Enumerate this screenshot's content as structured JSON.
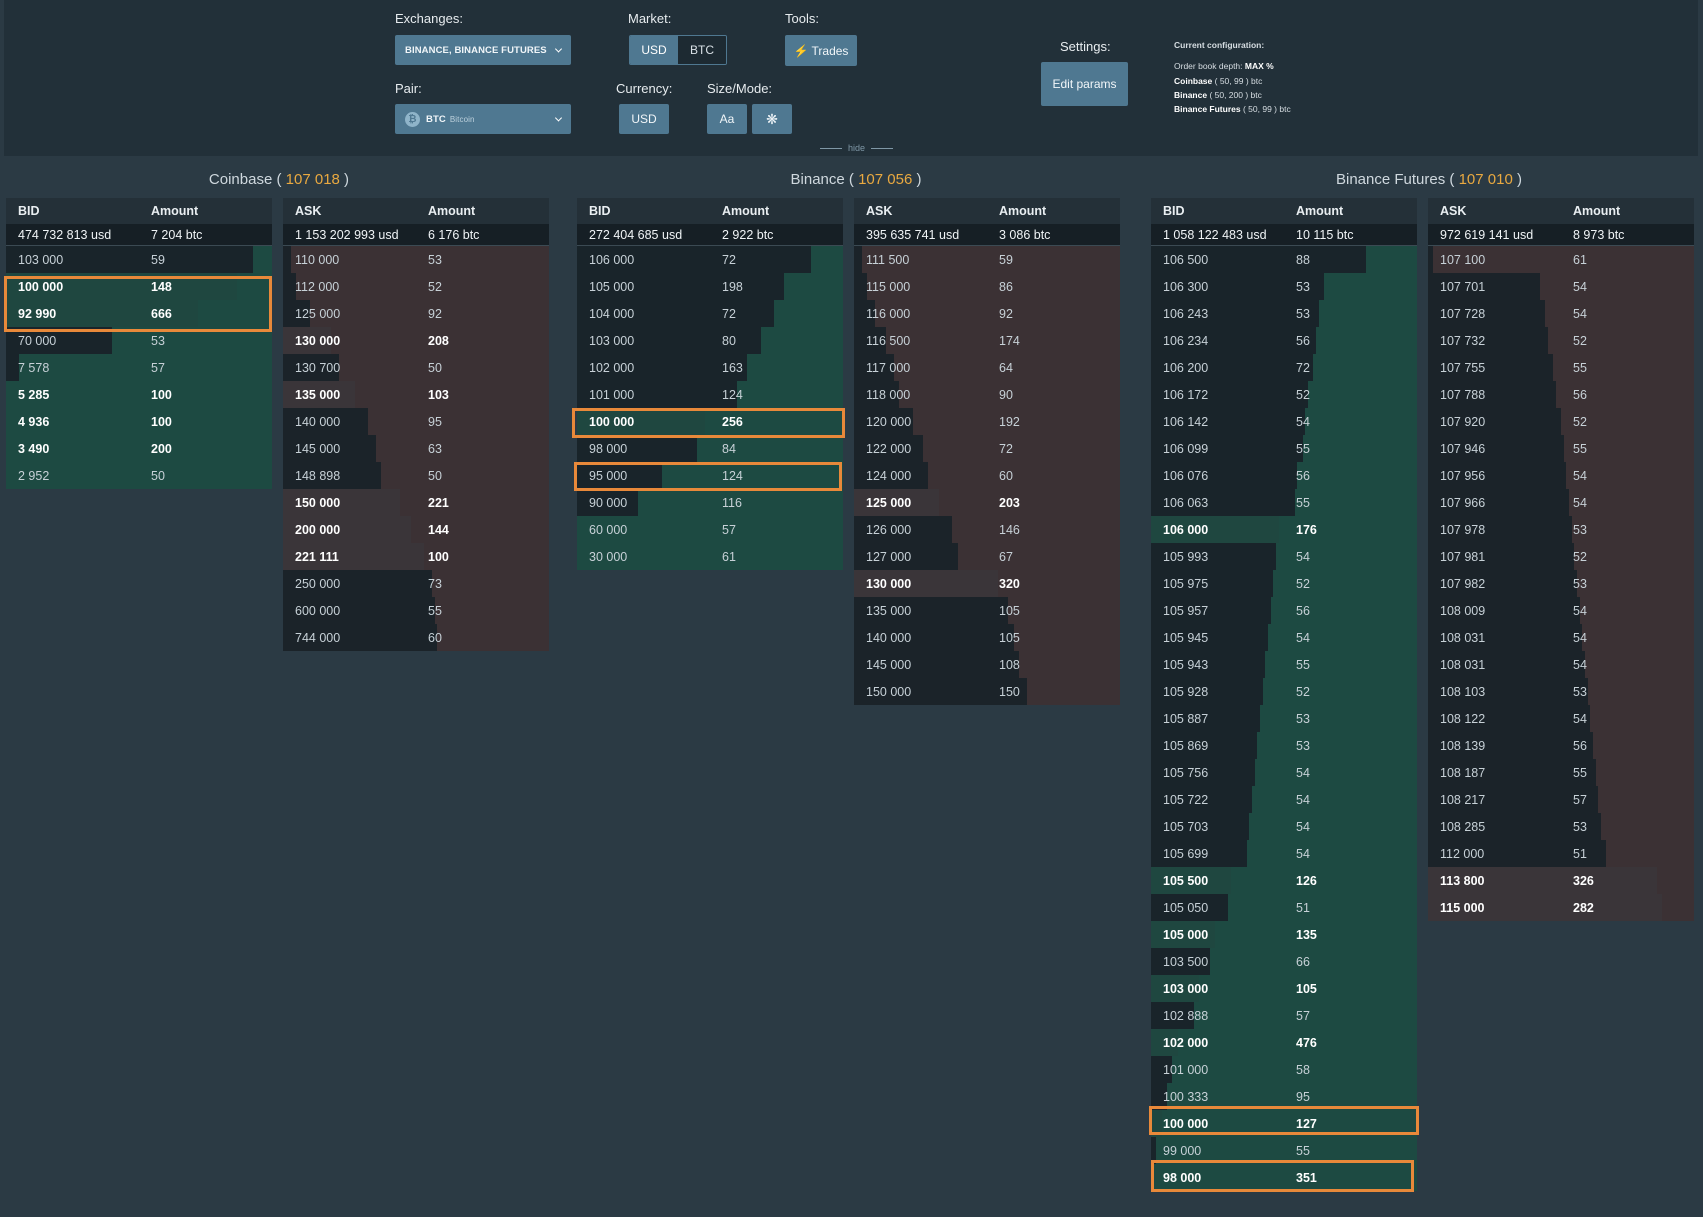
{
  "controls": {
    "exchanges_label": "Exchanges:",
    "exchanges_value": "BINANCE, BINANCE FUTURES",
    "market_label": "Market:",
    "market_options": [
      "USD",
      "BTC"
    ],
    "tools_label": "Tools:",
    "trades_button": "Trades",
    "pair_label": "Pair:",
    "pair_value": "BTC",
    "pair_sub": "Bitcoin",
    "currency_label": "Currency:",
    "currency_value": "USD",
    "sizemode_label": "Size/Mode:",
    "size_button": "Aa",
    "mode_button": "❋",
    "settings_label": "Settings:",
    "edit_params_button": "Edit params",
    "hide_label": "hide"
  },
  "config": {
    "title": "Current configuration:",
    "depth_prefix": "Order book depth:",
    "depth_value": "MAX %",
    "lines": [
      {
        "name": "Coinbase",
        "rest": " ( 50, 99 ) btc"
      },
      {
        "name": "Binance",
        "rest": " ( 50, 200 ) btc"
      },
      {
        "name": "Binance Futures",
        "rest": " ( 50, 99 ) btc"
      }
    ]
  },
  "exchanges": [
    {
      "name": "Coinbase",
      "price": "107 018",
      "bid": {
        "headers": [
          "BID",
          "Amount"
        ],
        "total": [
          "474 732 813 usd",
          "7 204 btc"
        ],
        "rows": [
          {
            "price": "103 000",
            "amount": "59",
            "depth": 0.07
          },
          {
            "price": "100 000",
            "amount": "148",
            "depth": 0.13,
            "big": true
          },
          {
            "price": "92 990",
            "amount": "666",
            "depth": 0.28,
            "big": true
          },
          {
            "price": "70 000",
            "amount": "53",
            "depth": 0.6
          },
          {
            "price": "7 578",
            "amount": "57",
            "depth": 0.95
          },
          {
            "price": "5 285",
            "amount": "100",
            "depth": 1.0,
            "big": true
          },
          {
            "price": "4 936",
            "amount": "100",
            "depth": 1.0,
            "big": true
          },
          {
            "price": "3 490",
            "amount": "200",
            "depth": 1.0,
            "big": true
          },
          {
            "price": "2 952",
            "amount": "50",
            "depth": 1.0
          }
        ]
      },
      "ask": {
        "headers": [
          "ASK",
          "Amount"
        ],
        "total": [
          "1 153 202 993 usd",
          "6 176 btc"
        ],
        "rows": [
          {
            "price": "110 000",
            "amount": "53",
            "depth": 0.97
          },
          {
            "price": "112 000",
            "amount": "52",
            "depth": 0.95
          },
          {
            "price": "125 000",
            "amount": "92",
            "depth": 0.9
          },
          {
            "price": "130 000",
            "amount": "208",
            "depth": 0.82,
            "big": true
          },
          {
            "price": "130 700",
            "amount": "50",
            "depth": 0.79
          },
          {
            "price": "135 000",
            "amount": "103",
            "depth": 0.73,
            "big": true
          },
          {
            "price": "140 000",
            "amount": "95",
            "depth": 0.68
          },
          {
            "price": "145 000",
            "amount": "63",
            "depth": 0.65
          },
          {
            "price": "148 898",
            "amount": "50",
            "depth": 0.63
          },
          {
            "price": "150 000",
            "amount": "221",
            "depth": 0.56,
            "big": true
          },
          {
            "price": "200 000",
            "amount": "144",
            "depth": 0.52,
            "big": true
          },
          {
            "price": "221 111",
            "amount": "100",
            "depth": 0.47,
            "big": true
          },
          {
            "price": "250 000",
            "amount": "73",
            "depth": 0.44
          },
          {
            "price": "600 000",
            "amount": "55",
            "depth": 0.43
          },
          {
            "price": "744 000",
            "amount": "60",
            "depth": 0.42
          }
        ]
      }
    },
    {
      "name": "Binance",
      "price": "107 056",
      "bid": {
        "headers": [
          "BID",
          "Amount"
        ],
        "total": [
          "272 404 685 usd",
          "2 922 btc"
        ],
        "rows": [
          {
            "price": "106 000",
            "amount": "72",
            "depth": 0.12
          },
          {
            "price": "105 000",
            "amount": "198",
            "depth": 0.22
          },
          {
            "price": "104 000",
            "amount": "72",
            "depth": 0.26
          },
          {
            "price": "103 000",
            "amount": "80",
            "depth": 0.31
          },
          {
            "price": "102 000",
            "amount": "163",
            "depth": 0.36
          },
          {
            "price": "101 000",
            "amount": "124",
            "depth": 0.4
          },
          {
            "price": "100 000",
            "amount": "256",
            "depth": 0.52,
            "big": true
          },
          {
            "price": "98 000",
            "amount": "84",
            "depth": 0.55
          },
          {
            "price": "95 000",
            "amount": "124",
            "depth": 0.68
          },
          {
            "price": "90 000",
            "amount": "116",
            "depth": 0.77
          },
          {
            "price": "60 000",
            "amount": "57",
            "depth": 1.0
          },
          {
            "price": "30 000",
            "amount": "61",
            "depth": 1.0
          }
        ]
      },
      "ask": {
        "headers": [
          "ASK",
          "Amount"
        ],
        "total": [
          "395 635 741 usd",
          "3 086 btc"
        ],
        "rows": [
          {
            "price": "111 500",
            "amount": "59",
            "depth": 0.97
          },
          {
            "price": "115 000",
            "amount": "86",
            "depth": 0.95
          },
          {
            "price": "116 000",
            "amount": "92",
            "depth": 0.92
          },
          {
            "price": "116 500",
            "amount": "174",
            "depth": 0.88
          },
          {
            "price": "117 000",
            "amount": "64",
            "depth": 0.85
          },
          {
            "price": "118 000",
            "amount": "90",
            "depth": 0.83
          },
          {
            "price": "120 000",
            "amount": "192",
            "depth": 0.78
          },
          {
            "price": "122 000",
            "amount": "72",
            "depth": 0.74
          },
          {
            "price": "124 000",
            "amount": "60",
            "depth": 0.72
          },
          {
            "price": "125 000",
            "amount": "203",
            "depth": 0.68,
            "big": true
          },
          {
            "price": "126 000",
            "amount": "146",
            "depth": 0.63
          },
          {
            "price": "127 000",
            "amount": "67",
            "depth": 0.61
          },
          {
            "price": "130 000",
            "amount": "320",
            "depth": 0.46,
            "big": true
          },
          {
            "price": "135 000",
            "amount": "105",
            "depth": 0.42
          },
          {
            "price": "140 000",
            "amount": "105",
            "depth": 0.4
          },
          {
            "price": "145 000",
            "amount": "108",
            "depth": 0.38
          },
          {
            "price": "150 000",
            "amount": "150",
            "depth": 0.35
          }
        ]
      }
    },
    {
      "name": "Binance Futures",
      "price": "107 010",
      "bid": {
        "headers": [
          "BID",
          "Amount"
        ],
        "total": [
          "1 058 122 483 usd",
          "10 115 btc"
        ],
        "rows": [
          {
            "price": "106 500",
            "amount": "88",
            "depth": 0.19
          },
          {
            "price": "106 300",
            "amount": "53",
            "depth": 0.35
          },
          {
            "price": "106 243",
            "amount": "53",
            "depth": 0.37
          },
          {
            "price": "106 234",
            "amount": "56",
            "depth": 0.38
          },
          {
            "price": "106 200",
            "amount": "72",
            "depth": 0.39
          },
          {
            "price": "106 172",
            "amount": "52",
            "depth": 0.41
          },
          {
            "price": "106 142",
            "amount": "54",
            "depth": 0.42
          },
          {
            "price": "106 099",
            "amount": "55",
            "depth": 0.43
          },
          {
            "price": "106 076",
            "amount": "56",
            "depth": 0.45
          },
          {
            "price": "106 063",
            "amount": "55",
            "depth": 0.46
          },
          {
            "price": "106 000",
            "amount": "176",
            "depth": 0.52,
            "big": true
          },
          {
            "price": "105 993",
            "amount": "54",
            "depth": 0.53
          },
          {
            "price": "105 975",
            "amount": "52",
            "depth": 0.54
          },
          {
            "price": "105 957",
            "amount": "56",
            "depth": 0.55
          },
          {
            "price": "105 945",
            "amount": "54",
            "depth": 0.56
          },
          {
            "price": "105 943",
            "amount": "55",
            "depth": 0.57
          },
          {
            "price": "105 928",
            "amount": "52",
            "depth": 0.58
          },
          {
            "price": "105 887",
            "amount": "53",
            "depth": 0.59
          },
          {
            "price": "105 869",
            "amount": "53",
            "depth": 0.6
          },
          {
            "price": "105 756",
            "amount": "54",
            "depth": 0.61
          },
          {
            "price": "105 722",
            "amount": "54",
            "depth": 0.62
          },
          {
            "price": "105 703",
            "amount": "54",
            "depth": 0.63
          },
          {
            "price": "105 699",
            "amount": "54",
            "depth": 0.64
          },
          {
            "price": "105 500",
            "amount": "126",
            "depth": 0.7,
            "big": true
          },
          {
            "price": "105 050",
            "amount": "51",
            "depth": 0.71
          },
          {
            "price": "105 000",
            "amount": "135",
            "depth": 0.76,
            "big": true
          },
          {
            "price": "103 500",
            "amount": "66",
            "depth": 0.78
          },
          {
            "price": "103 000",
            "amount": "105",
            "depth": 0.82,
            "big": true
          },
          {
            "price": "102 888",
            "amount": "57",
            "depth": 0.84
          },
          {
            "price": "102 000",
            "amount": "476",
            "depth": 0.9,
            "big": true
          },
          {
            "price": "101 000",
            "amount": "58",
            "depth": 0.92
          },
          {
            "price": "100 333",
            "amount": "95",
            "depth": 0.94
          },
          {
            "price": "100 000",
            "amount": "127",
            "depth": 0.96,
            "big": true
          },
          {
            "price": "99 000",
            "amount": "55",
            "depth": 0.98
          },
          {
            "price": "98 000",
            "amount": "351",
            "depth": 1.0,
            "big": true
          }
        ]
      },
      "ask": {
        "headers": [
          "ASK",
          "Amount"
        ],
        "total": [
          "972 619 141 usd",
          "8 973 btc"
        ],
        "rows": [
          {
            "price": "107 100",
            "amount": "61",
            "depth": 0.98
          },
          {
            "price": "107 701",
            "amount": "54",
            "depth": 0.58
          },
          {
            "price": "107 728",
            "amount": "54",
            "depth": 0.56
          },
          {
            "price": "107 732",
            "amount": "52",
            "depth": 0.55
          },
          {
            "price": "107 755",
            "amount": "55",
            "depth": 0.53
          },
          {
            "price": "107 788",
            "amount": "56",
            "depth": 0.52
          },
          {
            "price": "107 920",
            "amount": "52",
            "depth": 0.5
          },
          {
            "price": "107 946",
            "amount": "55",
            "depth": 0.49
          },
          {
            "price": "107 956",
            "amount": "54",
            "depth": 0.48
          },
          {
            "price": "107 966",
            "amount": "54",
            "depth": 0.47
          },
          {
            "price": "107 978",
            "amount": "53",
            "depth": 0.46
          },
          {
            "price": "107 981",
            "amount": "52",
            "depth": 0.45
          },
          {
            "price": "107 982",
            "amount": "53",
            "depth": 0.44
          },
          {
            "price": "108 009",
            "amount": "54",
            "depth": 0.43
          },
          {
            "price": "108 031",
            "amount": "54",
            "depth": 0.42
          },
          {
            "price": "108 031",
            "amount": "54",
            "depth": 0.41
          },
          {
            "price": "108 103",
            "amount": "53",
            "depth": 0.4
          },
          {
            "price": "108 122",
            "amount": "54",
            "depth": 0.39
          },
          {
            "price": "108 139",
            "amount": "56",
            "depth": 0.38
          },
          {
            "price": "108 187",
            "amount": "55",
            "depth": 0.37
          },
          {
            "price": "108 217",
            "amount": "57",
            "depth": 0.36
          },
          {
            "price": "108 285",
            "amount": "53",
            "depth": 0.35
          },
          {
            "price": "112 000",
            "amount": "51",
            "depth": 0.33
          },
          {
            "price": "113 800",
            "amount": "326",
            "depth": 0.14,
            "big": true
          },
          {
            "price": "115 000",
            "amount": "282",
            "depth": 0.12,
            "big": true
          }
        ]
      }
    }
  ]
}
